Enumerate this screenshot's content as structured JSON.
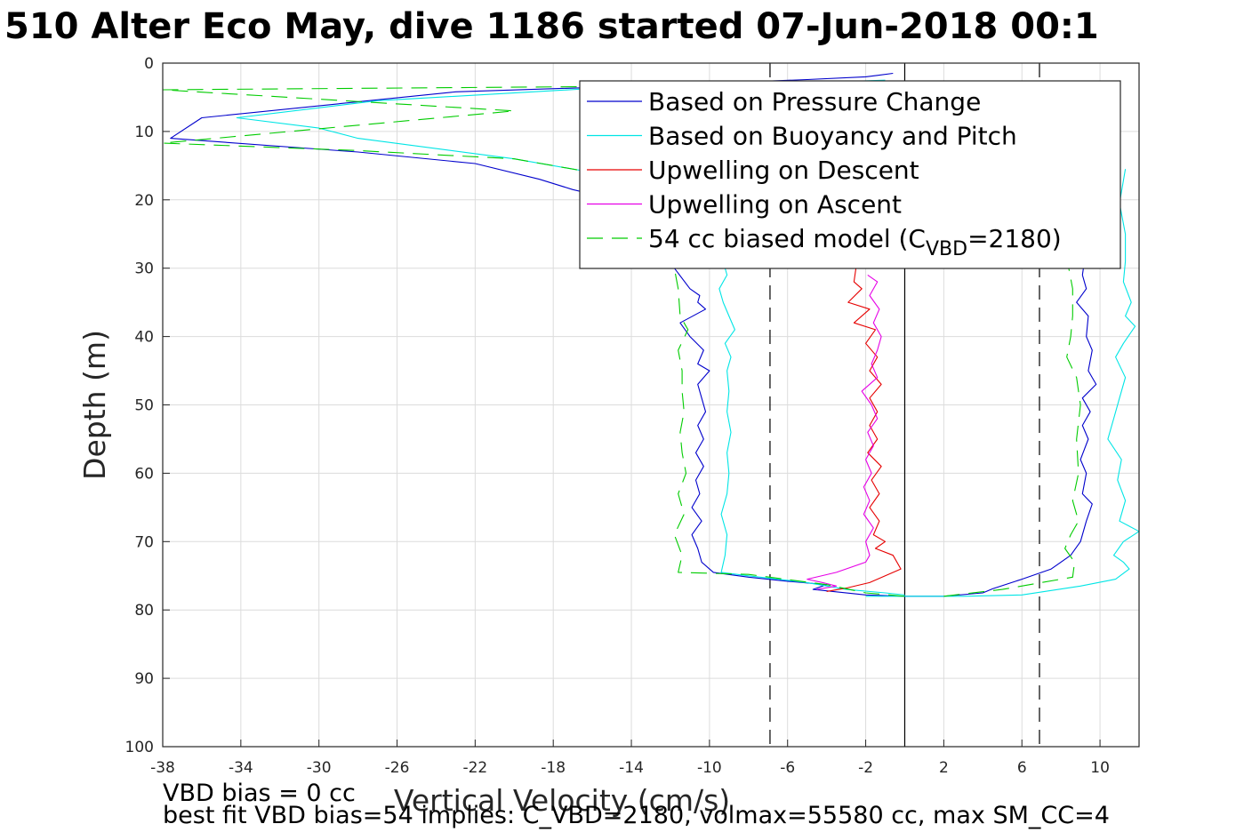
{
  "title": "510 Alter Eco May, dive 1186 started 07-Jun-2018 00:1",
  "notes": {
    "line1": "VBD bias = 0 cc",
    "line2": "best fit VBD bias=54 implies: C_VBD=2180, volmax=55580 cc, max SM_CC=4"
  },
  "chart_data": {
    "type": "line",
    "title": "510 Alter Eco May, dive 1186 started 07-Jun-2018 00:1",
    "xlabel": "Vertical Velocity (cm/s)",
    "ylabel": "Depth (m)",
    "xlim": [
      -38,
      12
    ],
    "ylim": [
      0,
      100
    ],
    "y_reversed": true,
    "grid": true,
    "xticks": [
      "-38",
      "-34",
      "-30",
      "-26",
      "-22",
      "-18",
      "-14",
      "-10",
      "-6",
      "-2",
      "2",
      "6",
      "10"
    ],
    "yticks": [
      "0",
      "10",
      "20",
      "30",
      "40",
      "50",
      "60",
      "70",
      "80",
      "90",
      "100"
    ],
    "reference_lines": [
      {
        "x": -6.9,
        "style": "dashed",
        "color": "#000000"
      },
      {
        "x": 0,
        "style": "solid",
        "color": "#000000"
      },
      {
        "x": 6.9,
        "style": "dashed",
        "color": "#000000"
      }
    ],
    "legend": {
      "placement": "top-right",
      "entries": [
        {
          "label": "Based on Pressure Change",
          "color": "#0000cc",
          "style": "solid"
        },
        {
          "label": "Based on Buoyancy and Pitch",
          "color": "#00e5e5",
          "style": "solid"
        },
        {
          "label": "Upwelling on Descent",
          "color": "#e60000",
          "style": "solid"
        },
        {
          "label": "Upwelling on Ascent",
          "color": "#e600e6",
          "style": "solid"
        },
        {
          "label_main": "54 cc biased model (C",
          "label_sub": "VBD",
          "label_tail": "=2180)",
          "color": "#00cc00",
          "style": "dashed"
        }
      ]
    },
    "series": [
      {
        "key": "pressure_descent",
        "color": "#0000cc",
        "dash": "",
        "points": [
          [
            -0.6,
            1.5
          ],
          [
            -1.4,
            1.8
          ],
          [
            -2,
            2
          ],
          [
            -5,
            2.4
          ],
          [
            -12,
            3.2
          ],
          [
            -23,
            4.2
          ],
          [
            -36,
            8
          ],
          [
            -37.6,
            11
          ],
          [
            -28,
            13
          ],
          [
            -22,
            14.7
          ],
          [
            -18.7,
            17
          ],
          [
            -17,
            18.5
          ],
          [
            -15.5,
            19.5
          ],
          [
            -14,
            21
          ],
          [
            -13,
            23
          ],
          [
            -12,
            26
          ],
          [
            -11.8,
            30
          ],
          [
            -11,
            33
          ],
          [
            -10.5,
            34
          ],
          [
            -10.6,
            35
          ],
          [
            -10.2,
            36
          ],
          [
            -11.5,
            38
          ],
          [
            -11,
            40
          ],
          [
            -10.3,
            42
          ],
          [
            -10.6,
            44
          ],
          [
            -10,
            45
          ],
          [
            -10.6,
            47
          ],
          [
            -10.4,
            49
          ],
          [
            -10.2,
            51
          ],
          [
            -10.6,
            53
          ],
          [
            -10.3,
            55
          ],
          [
            -10.7,
            57
          ],
          [
            -10.3,
            59
          ],
          [
            -10.7,
            61
          ],
          [
            -10.5,
            63
          ],
          [
            -10.9,
            65
          ],
          [
            -10.4,
            67
          ],
          [
            -10.9,
            69
          ],
          [
            -10.6,
            71
          ],
          [
            -10.4,
            73
          ],
          [
            -9.8,
            74.5
          ],
          [
            -8,
            75.2
          ],
          [
            -6,
            75.8
          ],
          [
            -4,
            76.3
          ],
          [
            -4.7,
            77
          ],
          [
            -2,
            77.8
          ],
          [
            0,
            78
          ],
          [
            2,
            78
          ]
        ]
      },
      {
        "key": "pressure_ascent",
        "color": "#0000cc",
        "dash": "",
        "points": [
          [
            2,
            78
          ],
          [
            4,
            77.5
          ],
          [
            4.5,
            76.9
          ],
          [
            6,
            75.5
          ],
          [
            7.5,
            74
          ],
          [
            8.5,
            72
          ],
          [
            9,
            70
          ],
          [
            9.3,
            67
          ],
          [
            9.6,
            64.5
          ],
          [
            9.1,
            63
          ],
          [
            9.3,
            60
          ],
          [
            9,
            58
          ],
          [
            9.4,
            55
          ],
          [
            9.1,
            53
          ],
          [
            9.5,
            51
          ],
          [
            9.1,
            49
          ],
          [
            9.8,
            47
          ],
          [
            9.4,
            45
          ],
          [
            9.6,
            42
          ],
          [
            9.3,
            40
          ],
          [
            9.4,
            37
          ],
          [
            8.8,
            35
          ],
          [
            9.3,
            33
          ],
          [
            9.1,
            31
          ],
          [
            9.2,
            29
          ],
          [
            8.9,
            25
          ]
        ]
      },
      {
        "key": "buoyancy_descent",
        "color": "#00e5e5",
        "dash": "",
        "points": [
          [
            -1,
            2.5
          ],
          [
            -6,
            3
          ],
          [
            -16,
            3.7
          ],
          [
            -27,
            5.5
          ],
          [
            -34.2,
            8
          ],
          [
            -30,
            9.5
          ],
          [
            -28,
            11
          ],
          [
            -20,
            14
          ],
          [
            -16,
            16
          ],
          [
            -14,
            19
          ],
          [
            -12.5,
            22
          ],
          [
            -10.5,
            25
          ],
          [
            -9.4,
            28
          ],
          [
            -9.1,
            31
          ],
          [
            -9.5,
            33
          ],
          [
            -9.3,
            35
          ],
          [
            -9.0,
            37
          ],
          [
            -8.7,
            39
          ],
          [
            -9.2,
            41
          ],
          [
            -8.9,
            43
          ],
          [
            -9.1,
            45
          ],
          [
            -9.0,
            48
          ],
          [
            -9.1,
            51
          ],
          [
            -8.9,
            54
          ],
          [
            -9.1,
            57
          ],
          [
            -9.0,
            60
          ],
          [
            -9.1,
            63
          ],
          [
            -9.4,
            66
          ],
          [
            -9.1,
            69
          ],
          [
            -9.2,
            72
          ],
          [
            -9.4,
            74.5
          ],
          [
            -8,
            75
          ],
          [
            -5,
            76
          ],
          [
            -3,
            77
          ],
          [
            -1,
            77.5
          ],
          [
            0,
            77.8
          ]
        ]
      },
      {
        "key": "buoyancy_ascent",
        "color": "#00e5e5",
        "dash": "",
        "points": [
          [
            -2,
            78
          ],
          [
            3,
            78
          ],
          [
            6,
            77.8
          ],
          [
            9,
            76.5
          ],
          [
            10.8,
            75.5
          ],
          [
            11.5,
            74
          ],
          [
            11.2,
            73
          ],
          [
            10.7,
            72
          ],
          [
            11.2,
            70
          ],
          [
            12,
            68.5
          ],
          [
            11,
            67
          ],
          [
            11.3,
            64
          ],
          [
            10.9,
            61
          ],
          [
            11.1,
            58
          ],
          [
            10.4,
            55
          ],
          [
            10.7,
            52
          ],
          [
            11.0,
            49
          ],
          [
            11.3,
            46
          ],
          [
            10.8,
            43
          ],
          [
            11.2,
            41
          ],
          [
            11.8,
            38.5
          ],
          [
            11.3,
            37
          ],
          [
            11.6,
            35
          ],
          [
            11.2,
            32
          ],
          [
            11.3,
            29
          ],
          [
            11.3,
            25
          ],
          [
            11,
            20.5
          ],
          [
            11.3,
            15.5
          ]
        ]
      },
      {
        "key": "upwelling_descent",
        "color": "#e60000",
        "dash": "",
        "points": [
          [
            -2.5,
            30
          ],
          [
            -2.6,
            32
          ],
          [
            -2.2,
            33
          ],
          [
            -2.9,
            35
          ],
          [
            -1.8,
            36
          ],
          [
            -2.6,
            38
          ],
          [
            -1.5,
            39
          ],
          [
            -2.0,
            41
          ],
          [
            -1.4,
            43
          ],
          [
            -1.8,
            45
          ],
          [
            -1.2,
            47
          ],
          [
            -1.8,
            49
          ],
          [
            -1.4,
            51
          ],
          [
            -1.8,
            53
          ],
          [
            -1.4,
            55
          ],
          [
            -1.9,
            57
          ],
          [
            -1.2,
            59
          ],
          [
            -1.7,
            61
          ],
          [
            -1.3,
            63
          ],
          [
            -1.8,
            65
          ],
          [
            -1.3,
            67
          ],
          [
            -1.6,
            69
          ],
          [
            -1.0,
            70
          ],
          [
            -1.5,
            71
          ],
          [
            -0.6,
            72
          ],
          [
            -0.2,
            74
          ],
          [
            -1.8,
            76
          ],
          [
            -3,
            76.8
          ],
          [
            -4,
            77.3
          ]
        ]
      },
      {
        "key": "upwelling_ascent",
        "color": "#e600e6",
        "dash": "",
        "points": [
          [
            -1.9,
            31
          ],
          [
            -1.4,
            32
          ],
          [
            -1.8,
            34
          ],
          [
            -1.3,
            36
          ],
          [
            -1.6,
            38
          ],
          [
            -1.2,
            40
          ],
          [
            -1.4,
            42
          ],
          [
            -1.7,
            44
          ],
          [
            -1.4,
            46
          ],
          [
            -2.2,
            48
          ],
          [
            -1.7,
            50
          ],
          [
            -1.4,
            52
          ],
          [
            -1.9,
            54
          ],
          [
            -1.6,
            56
          ],
          [
            -2.0,
            58
          ],
          [
            -1.7,
            60
          ],
          [
            -2.1,
            62
          ],
          [
            -1.8,
            64
          ],
          [
            -2.1,
            66
          ],
          [
            -1.6,
            68
          ],
          [
            -2.0,
            70
          ],
          [
            -1.8,
            72
          ],
          [
            -2.0,
            73
          ],
          [
            -3.5,
            74.5
          ],
          [
            -5.0,
            75.5
          ],
          [
            -4.2,
            76
          ],
          [
            -3.5,
            76.5
          ],
          [
            -4.5,
            77
          ]
        ]
      },
      {
        "key": "model_descent",
        "color": "#00cc00",
        "dash": "18,10",
        "points": [
          [
            -1.5,
            2.8
          ],
          [
            -14,
            3.4
          ],
          [
            -38,
            3.9
          ],
          [
            -20,
            7
          ],
          [
            -38,
            11.7
          ],
          [
            -28,
            12.8
          ],
          [
            -20,
            14
          ],
          [
            -16,
            16
          ],
          [
            -13,
            20
          ],
          [
            -12,
            27
          ],
          [
            -11.6,
            33
          ],
          [
            -11.5,
            37
          ],
          [
            -11.1,
            39
          ],
          [
            -11.6,
            42
          ],
          [
            -11.4,
            45
          ],
          [
            -11.4,
            48
          ],
          [
            -11.3,
            51
          ],
          [
            -11.5,
            54
          ],
          [
            -11.4,
            57
          ],
          [
            -11.2,
            60
          ],
          [
            -11.6,
            63
          ],
          [
            -11.3,
            66
          ],
          [
            -11.8,
            69
          ],
          [
            -11.4,
            72
          ],
          [
            -11.6,
            74.5
          ],
          [
            -8,
            74.8
          ],
          [
            -4,
            76.3
          ],
          [
            -2,
            77.5
          ],
          [
            0,
            78
          ]
        ]
      },
      {
        "key": "model_ascent",
        "color": "#00cc00",
        "dash": "18,10",
        "points": [
          [
            2,
            78
          ],
          [
            5,
            77
          ],
          [
            7,
            76
          ],
          [
            8.6,
            75.2
          ],
          [
            8.7,
            73
          ],
          [
            8.2,
            71
          ],
          [
            8.5,
            69
          ],
          [
            8.9,
            67
          ],
          [
            8.6,
            64
          ],
          [
            8.9,
            60
          ],
          [
            8.8,
            55
          ],
          [
            9.0,
            50
          ],
          [
            8.8,
            46
          ],
          [
            8.3,
            43
          ],
          [
            8.5,
            40
          ],
          [
            8.6,
            37
          ],
          [
            8.6,
            33
          ],
          [
            8.4,
            30
          ]
        ]
      }
    ]
  }
}
